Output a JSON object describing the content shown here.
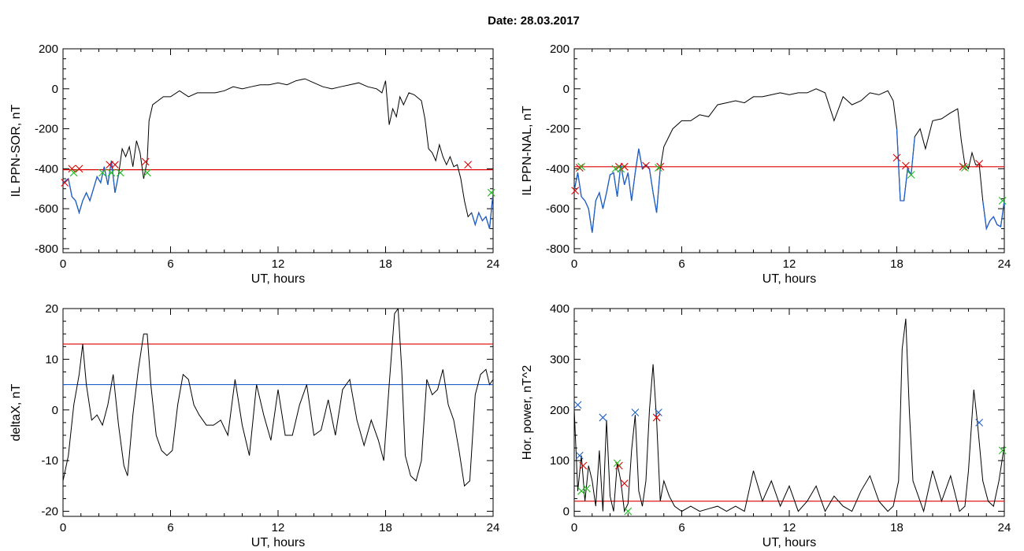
{
  "figure": {
    "title": "Date:  28.03.2017"
  },
  "colors": {
    "axis": "#000000",
    "trace": "#000000",
    "threshold_red": "#dd0000",
    "threshold_blue": "#1f5fc8",
    "segment_blue": "#1f5fc8",
    "marker_red": "#dd0000",
    "marker_green": "#22bb22",
    "marker_blue": "#1f5fc8"
  },
  "chart_data": [
    {
      "type": "line",
      "xlabel": "UT, hours",
      "ylabel": "IL PPN-SOR, nT",
      "xlim": [
        0,
        24
      ],
      "ylim": [
        -820,
        200
      ],
      "xticks": [
        0,
        6,
        12,
        18,
        24
      ],
      "yticks": [
        -800,
        -600,
        -400,
        -200,
        0,
        200
      ],
      "threshold_lines": [
        {
          "y": -405,
          "color": "red"
        }
      ],
      "series": [
        {
          "x": [
            0,
            0.3,
            0.5,
            0.7,
            0.9,
            1.1,
            1.3,
            1.5,
            1.7,
            1.9,
            2.1,
            2.3,
            2.5,
            2.7,
            2.9,
            3.1,
            3.3,
            3.5,
            3.7,
            3.9,
            4.1,
            4.3,
            4.5,
            4.7,
            4.8,
            5.0,
            5.3,
            5.6,
            6,
            6.5,
            7,
            7.5,
            8,
            8.5,
            9,
            9.5,
            10,
            10.5,
            11,
            11.5,
            12,
            12.5,
            13,
            13.5,
            14,
            14.5,
            15,
            15.5,
            16,
            16.5,
            17,
            17.5,
            17.8,
            18.0,
            18.2,
            18.4,
            18.6,
            18.8,
            19.0,
            19.3,
            19.6,
            20,
            20.2,
            20.4,
            20.6,
            20.8,
            21,
            21.2,
            21.4,
            21.6,
            21.8,
            22,
            22.2,
            22.4,
            22.6,
            22.8,
            23.0,
            23.2,
            23.4,
            23.6,
            23.8,
            24
          ],
          "y": [
            -470,
            -450,
            -540,
            -560,
            -620,
            -560,
            -520,
            -560,
            -500,
            -440,
            -470,
            -390,
            -480,
            -360,
            -520,
            -430,
            -300,
            -340,
            -290,
            -390,
            -260,
            -320,
            -450,
            -360,
            -160,
            -80,
            -60,
            -40,
            -40,
            -10,
            -40,
            -20,
            -20,
            -20,
            -10,
            10,
            0,
            10,
            20,
            20,
            30,
            20,
            40,
            50,
            30,
            10,
            0,
            10,
            20,
            30,
            10,
            0,
            -20,
            40,
            -180,
            -100,
            -140,
            -40,
            -80,
            -20,
            -30,
            -60,
            -150,
            -300,
            -320,
            -360,
            -280,
            -340,
            -380,
            -340,
            -390,
            -380,
            -450,
            -560,
            -640,
            -620,
            -680,
            -620,
            -660,
            -640,
            -700,
            -520
          ]
        }
      ],
      "highlight_segments": [
        {
          "x": [
            0,
            0.3,
            0.5,
            0.7,
            0.9,
            1.1,
            1.3,
            1.5,
            1.7,
            1.9,
            2.1,
            2.3,
            2.5,
            2.7,
            2.9,
            3.1
          ],
          "y": [
            -470,
            -450,
            -540,
            -560,
            -620,
            -560,
            -520,
            -560,
            -500,
            -440,
            -470,
            -390,
            -480,
            -360,
            -520,
            -430
          ]
        },
        {
          "x": [
            22.8,
            23.0,
            23.2,
            23.4,
            23.6,
            23.8,
            24
          ],
          "y": [
            -620,
            -680,
            -620,
            -660,
            -640,
            -700,
            -520
          ]
        }
      ],
      "markers": [
        {
          "x": 0.1,
          "y": -470,
          "color": "red"
        },
        {
          "x": 0.5,
          "y": -400,
          "color": "red"
        },
        {
          "x": 0.9,
          "y": -400,
          "color": "red"
        },
        {
          "x": 2.6,
          "y": -380,
          "color": "red"
        },
        {
          "x": 2.9,
          "y": -380,
          "color": "red"
        },
        {
          "x": 4.6,
          "y": -365,
          "color": "red"
        },
        {
          "x": 22.6,
          "y": -380,
          "color": "red"
        },
        {
          "x": 0.6,
          "y": -420,
          "color": "green"
        },
        {
          "x": 2.2,
          "y": -420,
          "color": "green"
        },
        {
          "x": 2.7,
          "y": -420,
          "color": "green"
        },
        {
          "x": 3.2,
          "y": -420,
          "color": "green"
        },
        {
          "x": 4.7,
          "y": -420,
          "color": "green"
        },
        {
          "x": 23.9,
          "y": -520,
          "color": "green"
        }
      ]
    },
    {
      "type": "line",
      "xlabel": "UT, hours",
      "ylabel": "IL PPN-NAL, nT",
      "xlim": [
        0,
        24
      ],
      "ylim": [
        -820,
        200
      ],
      "xticks": [
        0,
        6,
        12,
        18,
        24
      ],
      "yticks": [
        -800,
        -600,
        -400,
        -200,
        0,
        200
      ],
      "threshold_lines": [
        {
          "y": -390,
          "color": "red"
        }
      ],
      "series": [
        {
          "x": [
            0,
            0.2,
            0.4,
            0.6,
            0.8,
            1.0,
            1.2,
            1.4,
            1.6,
            1.8,
            2.0,
            2.2,
            2.4,
            2.6,
            2.8,
            3.0,
            3.2,
            3.4,
            3.6,
            3.8,
            4.0,
            4.2,
            4.4,
            4.6,
            4.8,
            5.0,
            5.5,
            6,
            6.5,
            7,
            7.5,
            8,
            8.5,
            9,
            9.5,
            10,
            10.5,
            11,
            11.5,
            12,
            12.5,
            13,
            13.5,
            14,
            14.5,
            15,
            15.5,
            16,
            16.5,
            17,
            17.5,
            17.8,
            18.0,
            18.2,
            18.4,
            18.6,
            18.8,
            19.0,
            19.3,
            19.6,
            20,
            20.5,
            21,
            21.4,
            21.6,
            21.8,
            22,
            22.2,
            22.4,
            22.6,
            22.8,
            23.0,
            23.2,
            23.4,
            23.6,
            23.8,
            24
          ],
          "y": [
            -510,
            -420,
            -540,
            -560,
            -600,
            -720,
            -560,
            -520,
            -600,
            -520,
            -430,
            -420,
            -540,
            -380,
            -480,
            -420,
            -560,
            -420,
            -300,
            -400,
            -380,
            -400,
            -520,
            -620,
            -400,
            -290,
            -200,
            -160,
            -160,
            -130,
            -140,
            -80,
            -70,
            -60,
            -70,
            -40,
            -40,
            -30,
            -20,
            -30,
            -20,
            -20,
            0,
            -20,
            -160,
            -40,
            -80,
            -60,
            -20,
            -30,
            -10,
            -60,
            -200,
            -560,
            -560,
            -400,
            -430,
            -240,
            -200,
            -300,
            -160,
            -150,
            -120,
            -100,
            -260,
            -380,
            -400,
            -320,
            -380,
            -380,
            -560,
            -700,
            -660,
            -640,
            -680,
            -690,
            -560
          ]
        }
      ],
      "highlight_segments": [
        {
          "x": [
            0,
            0.2,
            0.4,
            0.6,
            0.8,
            1.0,
            1.2,
            1.4,
            1.6,
            1.8,
            2.0,
            2.2,
            2.4,
            2.6,
            2.8,
            3.0,
            3.2,
            3.4,
            3.6,
            3.8,
            4.0,
            4.2,
            4.4,
            4.6,
            4.8
          ],
          "y": [
            -510,
            -420,
            -540,
            -560,
            -600,
            -720,
            -560,
            -520,
            -600,
            -520,
            -430,
            -420,
            -540,
            -380,
            -480,
            -420,
            -560,
            -420,
            -300,
            -400,
            -380,
            -400,
            -520,
            -620,
            -400
          ]
        },
        {
          "x": [
            18.0,
            18.2,
            18.4,
            18.6,
            18.8,
            19.0
          ],
          "y": [
            -200,
            -560,
            -560,
            -400,
            -430,
            -240
          ]
        },
        {
          "x": [
            22.8,
            23.0,
            23.2,
            23.4,
            23.6,
            23.8,
            24
          ],
          "y": [
            -560,
            -700,
            -660,
            -640,
            -680,
            -690,
            -560
          ]
        }
      ],
      "markers": [
        {
          "x": 0.05,
          "y": -510,
          "color": "red"
        },
        {
          "x": 0.3,
          "y": -395,
          "color": "red"
        },
        {
          "x": 2.5,
          "y": -390,
          "color": "red"
        },
        {
          "x": 2.8,
          "y": -390,
          "color": "red"
        },
        {
          "x": 4.0,
          "y": -385,
          "color": "red"
        },
        {
          "x": 4.8,
          "y": -390,
          "color": "red"
        },
        {
          "x": 18.0,
          "y": -345,
          "color": "red"
        },
        {
          "x": 18.5,
          "y": -385,
          "color": "red"
        },
        {
          "x": 21.7,
          "y": -390,
          "color": "red"
        },
        {
          "x": 22.6,
          "y": -375,
          "color": "red"
        },
        {
          "x": 0.4,
          "y": -390,
          "color": "green"
        },
        {
          "x": 2.3,
          "y": -400,
          "color": "green"
        },
        {
          "x": 2.6,
          "y": -400,
          "color": "green"
        },
        {
          "x": 4.7,
          "y": -395,
          "color": "green"
        },
        {
          "x": 18.8,
          "y": -430,
          "color": "green"
        },
        {
          "x": 21.8,
          "y": -395,
          "color": "green"
        },
        {
          "x": 23.9,
          "y": -560,
          "color": "green"
        }
      ]
    },
    {
      "type": "line",
      "xlabel": "UT, hours",
      "ylabel": "deltaX, nT",
      "xlim": [
        0,
        24
      ],
      "ylim": [
        -21,
        20
      ],
      "xticks": [
        0,
        6,
        12,
        18,
        24
      ],
      "yticks": [
        -20,
        -10,
        0,
        10,
        20
      ],
      "threshold_lines": [
        {
          "y": 13,
          "color": "red"
        },
        {
          "y": 5,
          "color": "blue"
        }
      ],
      "series": [
        {
          "x": [
            0,
            0.3,
            0.6,
            0.9,
            1.1,
            1.3,
            1.6,
            1.9,
            2.2,
            2.5,
            2.8,
            3.1,
            3.4,
            3.6,
            3.9,
            4.2,
            4.5,
            4.7,
            4.9,
            5.2,
            5.5,
            5.8,
            6.1,
            6.4,
            6.7,
            7.0,
            7.3,
            7.6,
            8.0,
            8.4,
            8.8,
            9.2,
            9.6,
            10.0,
            10.4,
            10.8,
            11.2,
            11.6,
            12.0,
            12.4,
            12.8,
            13.2,
            13.6,
            14.0,
            14.4,
            14.8,
            15.2,
            15.6,
            16.0,
            16.4,
            16.8,
            17.2,
            17.6,
            17.9,
            18.2,
            18.5,
            18.7,
            18.9,
            19.1,
            19.4,
            19.7,
            20.0,
            20.3,
            20.6,
            20.9,
            21.2,
            21.5,
            21.8,
            22.1,
            22.4,
            22.7,
            23.0,
            23.3,
            23.6,
            23.8,
            24
          ],
          "y": [
            -14,
            -9,
            1,
            7,
            13,
            5,
            -2,
            -1,
            -3,
            1,
            7,
            -3,
            -11,
            -13,
            -1,
            8,
            15,
            15,
            5,
            -5,
            -8,
            -9,
            -8,
            1,
            7,
            6,
            1,
            -1,
            -3,
            -3,
            -2,
            -5,
            6,
            -3,
            -9,
            5,
            -1,
            -6,
            4,
            -5,
            -5,
            1,
            5,
            -5,
            -4,
            2,
            -5,
            4,
            6,
            -2,
            -7,
            -2,
            -6,
            -10,
            5,
            19,
            20,
            8,
            -9,
            -13,
            -14,
            -10,
            6,
            3,
            4,
            8,
            1,
            -2,
            -8,
            -15,
            -14,
            3,
            7,
            8,
            5,
            6
          ]
        }
      ],
      "highlight_segments": [],
      "markers": []
    },
    {
      "type": "line",
      "xlabel": "UT, hours",
      "ylabel": "Hor. power, nT^2",
      "xlim": [
        0,
        24
      ],
      "ylim": [
        -10,
        400
      ],
      "xticks": [
        0,
        6,
        12,
        18,
        24
      ],
      "yticks": [
        0,
        100,
        200,
        300,
        400
      ],
      "threshold_lines": [
        {
          "y": 20,
          "color": "red"
        }
      ],
      "series": [
        {
          "x": [
            0,
            0.2,
            0.4,
            0.6,
            0.8,
            1.0,
            1.2,
            1.4,
            1.6,
            1.8,
            2.0,
            2.2,
            2.4,
            2.6,
            2.8,
            3.0,
            3.2,
            3.4,
            3.6,
            3.8,
            4.0,
            4.2,
            4.4,
            4.6,
            4.8,
            5.0,
            5.3,
            5.6,
            6.0,
            6.5,
            7.0,
            7.5,
            8.0,
            8.5,
            9.0,
            9.5,
            10.0,
            10.5,
            11.0,
            11.5,
            12.0,
            12.5,
            13.0,
            13.5,
            14.0,
            14.5,
            15.0,
            15.5,
            16.0,
            16.5,
            17.0,
            17.5,
            17.8,
            18.1,
            18.3,
            18.5,
            18.7,
            18.9,
            19.2,
            19.5,
            20.0,
            20.5,
            21.0,
            21.5,
            21.8,
            22.0,
            22.3,
            22.5,
            22.8,
            23.1,
            23.4,
            23.7,
            24
          ],
          "y": [
            200,
            40,
            110,
            20,
            90,
            60,
            10,
            120,
            0,
            180,
            30,
            0,
            95,
            60,
            0,
            15,
            120,
            190,
            40,
            10,
            60,
            200,
            290,
            180,
            20,
            60,
            30,
            10,
            0,
            10,
            0,
            5,
            10,
            0,
            10,
            0,
            80,
            20,
            60,
            10,
            50,
            0,
            20,
            50,
            0,
            30,
            10,
            0,
            40,
            70,
            20,
            0,
            10,
            60,
            320,
            380,
            200,
            60,
            30,
            0,
            80,
            20,
            70,
            0,
            10,
            80,
            240,
            175,
            60,
            20,
            10,
            60,
            130
          ]
        }
      ],
      "highlight_segments": [],
      "markers": [
        {
          "x": 0.2,
          "y": 210,
          "color": "blue"
        },
        {
          "x": 0.3,
          "y": 110,
          "color": "blue"
        },
        {
          "x": 1.6,
          "y": 185,
          "color": "blue"
        },
        {
          "x": 3.4,
          "y": 195,
          "color": "blue"
        },
        {
          "x": 4.7,
          "y": 195,
          "color": "blue"
        },
        {
          "x": 22.6,
          "y": 175,
          "color": "blue"
        },
        {
          "x": 0.5,
          "y": 90,
          "color": "red"
        },
        {
          "x": 2.5,
          "y": 90,
          "color": "red"
        },
        {
          "x": 2.8,
          "y": 55,
          "color": "red"
        },
        {
          "x": 4.6,
          "y": 185,
          "color": "red"
        },
        {
          "x": 0.4,
          "y": 40,
          "color": "green"
        },
        {
          "x": 0.7,
          "y": 45,
          "color": "green"
        },
        {
          "x": 2.4,
          "y": 95,
          "color": "green"
        },
        {
          "x": 3.0,
          "y": 0,
          "color": "green"
        },
        {
          "x": 23.9,
          "y": 120,
          "color": "green"
        }
      ]
    }
  ]
}
